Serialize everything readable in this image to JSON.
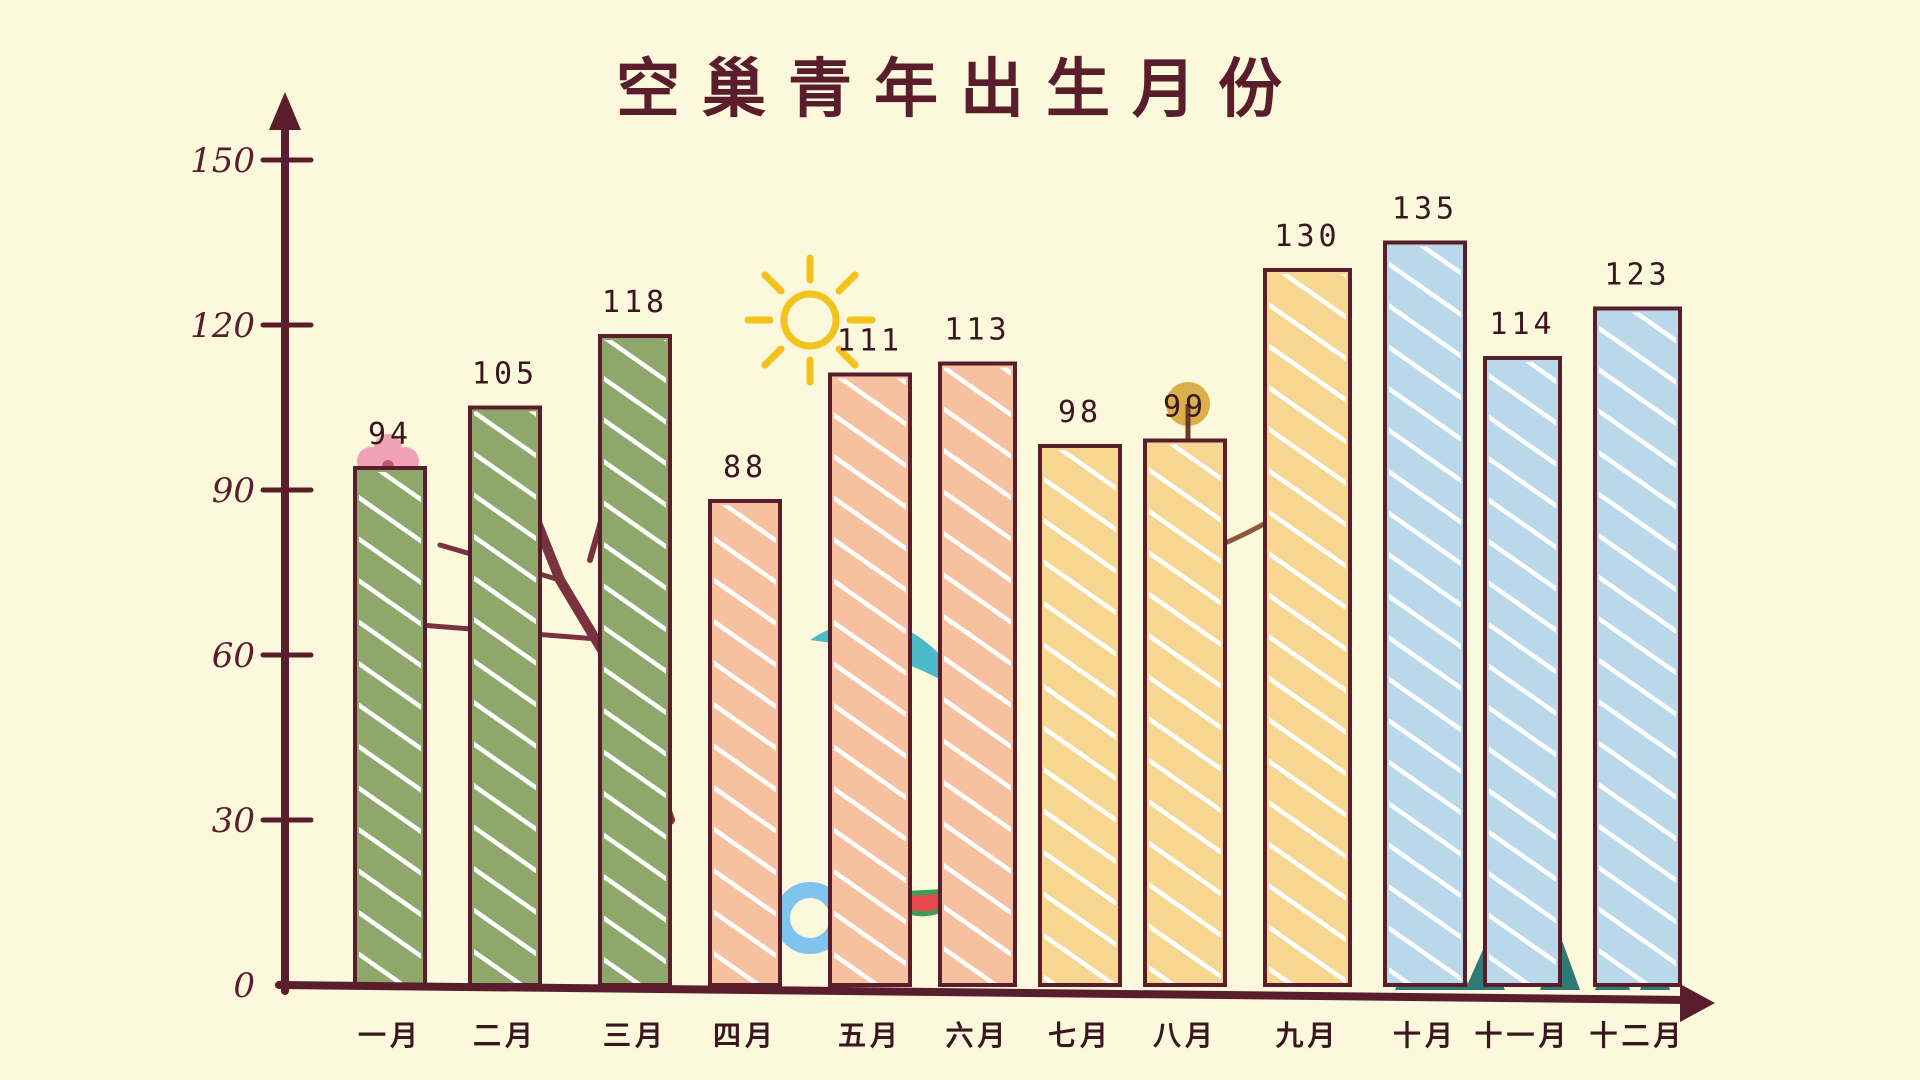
{
  "chart_data": {
    "type": "bar",
    "title": "空巢青年出生月份",
    "categories": [
      "一月",
      "二月",
      "三月",
      "四月",
      "五月",
      "六月",
      "七月",
      "八月",
      "九月",
      "十月",
      "十一月",
      "十二月"
    ],
    "values": [
      94,
      105,
      118,
      88,
      111,
      113,
      98,
      99,
      130,
      135,
      114,
      123
    ],
    "ylim": [
      0,
      150
    ],
    "yticks": [
      0,
      30,
      60,
      90,
      120,
      150
    ],
    "grid": false,
    "bar_colors": [
      "#8da86a",
      "#8da86a",
      "#8da86a",
      "#f7c1a0",
      "#f7c1a0",
      "#f7c1a0",
      "#f7d692",
      "#f7d692",
      "#f7d692",
      "#b9d9ea",
      "#b9d9ea",
      "#b9d9ea"
    ],
    "axis_color": "#5a1d2c"
  }
}
